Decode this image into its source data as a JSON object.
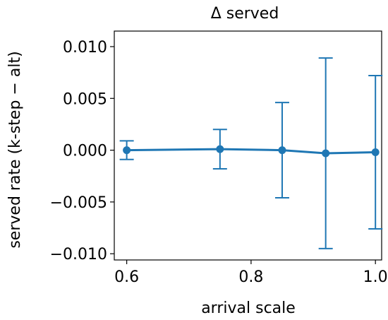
{
  "chart_data": {
    "type": "line",
    "title": "Δ served",
    "xlabel": "arrival scale",
    "ylabel": "served rate (k-step − alt)",
    "xlim": [
      0.58,
      1.01
    ],
    "ylim": [
      -0.0106,
      0.0115
    ],
    "xticks": [
      0.6,
      0.8,
      1.0
    ],
    "xtick_labels": [
      "0.6",
      "0.8",
      "1.0"
    ],
    "yticks": [
      -0.01,
      -0.005,
      0.0,
      0.005,
      0.01
    ],
    "ytick_labels": [
      "−0.010",
      "−0.005",
      "0.000",
      "0.005",
      "0.010"
    ],
    "grid": false,
    "series": [
      {
        "x": [
          0.6,
          0.75,
          0.85,
          0.92,
          1.0
        ],
        "y": [
          0.0,
          0.0001,
          0.0,
          -0.0003,
          -0.0002
        ],
        "yerr": [
          0.0009,
          0.0019,
          0.0046,
          0.0092,
          0.0074
        ],
        "color": "#1f77b4"
      }
    ]
  }
}
